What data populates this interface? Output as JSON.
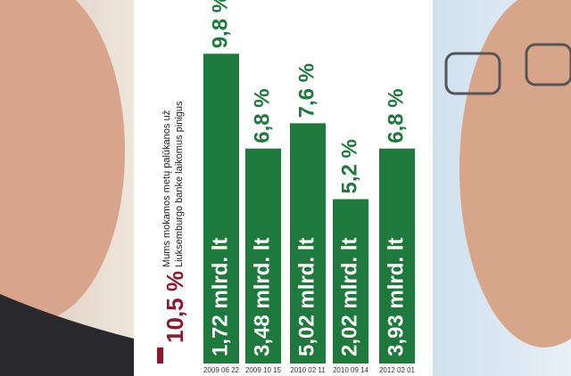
{
  "chart_data": {
    "type": "bar",
    "caption": [
      "Mums mokamos metų palūkanos už",
      "Liuksemburgo banke laikomus pinigus"
    ],
    "highlight_label": "10,5 %",
    "categories": [
      "2009 06 22",
      "2009 10 15",
      "2010 02 11",
      "2010 09 14",
      "2012 02 01"
    ],
    "values": [
      9.8,
      6.8,
      7.6,
      5.2,
      6.8
    ],
    "value_labels": [
      "9,8 %",
      "6,8 %",
      "7,6 %",
      "5,2 %",
      "6,8 %"
    ],
    "bar_labels": [
      "1,72 mlrd. lt",
      "3,48 mlrd. lt",
      "5,02 mlrd. lt",
      "2,02 mlrd. lt",
      "3,93 mlrd. lt"
    ],
    "color": "#1e7a3c",
    "ylim": [
      0,
      11.5
    ]
  }
}
